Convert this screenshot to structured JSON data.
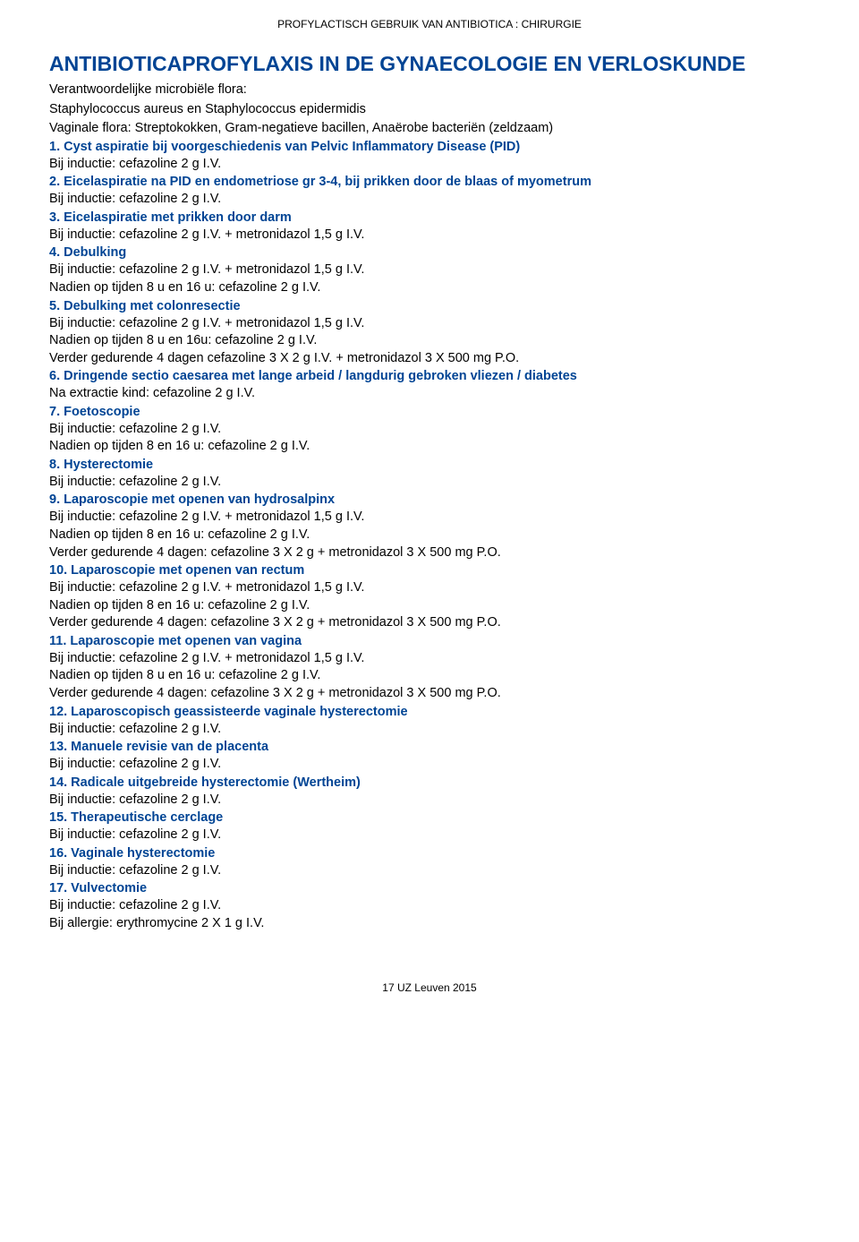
{
  "header": "PROFYLACTISCH GEBRUIK VAN ANTIBIOTICA : CHIRURGIE",
  "title": "ANTIBIOTICAPROFYLAXIS IN DE GYNAECOLOGIE EN VERLOSKUNDE",
  "intro": [
    "Verantwoordelijke microbiële flora:",
    "Staphylococcus aureus en Staphylococcus epidermidis",
    "Vaginale flora: Streptokokken, Gram-negatieve bacillen, Anaërobe bacteriën (zeldzaam)"
  ],
  "sections": [
    {
      "heading": "1. Cyst aspiratie bij voorgeschiedenis van Pelvic Inflammatory Disease (PID)",
      "lines": [
        "Bij inductie: cefazoline 2 g I.V."
      ]
    },
    {
      "heading": "2. Eicelaspiratie na PID en endometriose gr 3-4, bij prikken door de blaas of myometrum",
      "lines": [
        "Bij inductie: cefazoline 2 g I.V."
      ]
    },
    {
      "heading": "3. Eicelaspiratie met prikken door darm",
      "lines": [
        "Bij inductie: cefazoline 2 g I.V. + metronidazol 1,5 g I.V."
      ]
    },
    {
      "heading": "4. Debulking",
      "lines": [
        "Bij inductie: cefazoline 2 g I.V. + metronidazol 1,5 g I.V.",
        "Nadien op tijden 8 u en 16 u: cefazoline 2 g I.V."
      ]
    },
    {
      "heading": "5. Debulking met colonresectie",
      "lines": [
        "Bij inductie: cefazoline 2 g I.V. + metronidazol 1,5 g I.V.",
        "Nadien op tijden 8 u en 16u: cefazoline 2 g I.V.",
        "Verder gedurende 4 dagen cefazoline 3 X 2 g I.V. + metronidazol 3 X 500 mg P.O."
      ]
    },
    {
      "heading": "6. Dringende sectio caesarea met lange arbeid / langdurig gebroken vliezen / diabetes",
      "lines": [
        "Na extractie kind: cefazoline 2 g I.V."
      ]
    },
    {
      "heading": "7. Foetoscopie",
      "lines": [
        "Bij inductie: cefazoline 2 g I.V.",
        "Nadien op tijden 8 en 16 u: cefazoline 2 g I.V."
      ]
    },
    {
      "heading": "8. Hysterectomie",
      "lines": [
        "Bij inductie: cefazoline 2 g I.V."
      ]
    },
    {
      "heading": "9. Laparoscopie met openen van hydrosalpinx",
      "lines": [
        "Bij inductie: cefazoline 2 g I.V. + metronidazol 1,5 g I.V.",
        "Nadien op tijden 8 en 16 u: cefazoline 2 g I.V.",
        "Verder gedurende 4 dagen: cefazoline 3 X 2 g + metronidazol 3 X 500 mg P.O."
      ]
    },
    {
      "heading": "10. Laparoscopie met openen van rectum",
      "lines": [
        "Bij inductie: cefazoline 2 g I.V. + metronidazol 1,5 g I.V.",
        "Nadien op tijden 8 en 16 u: cefazoline 2 g I.V.",
        "Verder gedurende 4 dagen: cefazoline 3 X 2 g + metronidazol 3 X 500 mg P.O."
      ]
    },
    {
      "heading": "11. Laparoscopie met openen van vagina",
      "lines": [
        "Bij inductie: cefazoline 2 g I.V. + metronidazol 1,5 g I.V.",
        "Nadien op tijden 8 u en 16 u: cefazoline 2 g I.V.",
        "Verder gedurende 4 dagen: cefazoline 3 X 2 g + metronidazol 3 X 500 mg P.O."
      ]
    },
    {
      "heading": "12. Laparoscopisch geassisteerde vaginale hysterectomie",
      "lines": [
        "Bij inductie: cefazoline 2 g I.V."
      ]
    },
    {
      "heading": "13. Manuele revisie van de placenta",
      "lines": [
        "Bij inductie: cefazoline 2 g I.V."
      ]
    },
    {
      "heading": "14. Radicale uitgebreide hysterectomie (Wertheim)",
      "lines": [
        "Bij inductie: cefazoline 2 g I.V."
      ]
    },
    {
      "heading": "15. Therapeutische cerclage",
      "lines": [
        "Bij inductie: cefazoline 2 g I.V."
      ]
    },
    {
      "heading": "16. Vaginale hysterectomie",
      "lines": [
        "Bij inductie: cefazoline 2 g I.V."
      ]
    },
    {
      "heading": "17. Vulvectomie",
      "lines": [
        "Bij inductie: cefazoline 2 g I.V.",
        "Bij allergie: erythromycine 2 X 1 g I.V."
      ]
    }
  ],
  "footer": "17 UZ Leuven 2015",
  "colors": {
    "heading_blue": "#004494",
    "text_black": "#000000",
    "background": "#ffffff"
  },
  "typography": {
    "header_fontsize": 12,
    "title_fontsize": 23,
    "body_fontsize": 14.5,
    "footer_fontsize": 12,
    "font_family": "Arial"
  }
}
